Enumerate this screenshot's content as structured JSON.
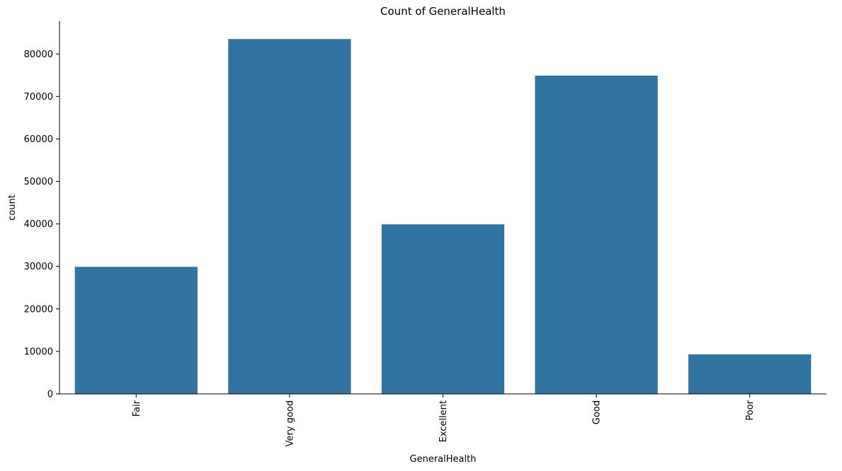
{
  "chart_data": {
    "type": "bar",
    "title": "Count of GeneralHealth",
    "xlabel": "GeneralHealth",
    "ylabel": "count",
    "categories": [
      "Fair",
      "Very good",
      "Excellent",
      "Good",
      "Poor"
    ],
    "values": [
      29900,
      83500,
      39900,
      74900,
      9300
    ],
    "ylim": [
      0,
      87700
    ],
    "yticks": [
      0,
      10000,
      20000,
      30000,
      40000,
      50000,
      60000,
      70000,
      80000
    ],
    "grid": false,
    "legend": "none",
    "bar_color": "#3274a1",
    "x_tick_rotation": "vertical"
  }
}
